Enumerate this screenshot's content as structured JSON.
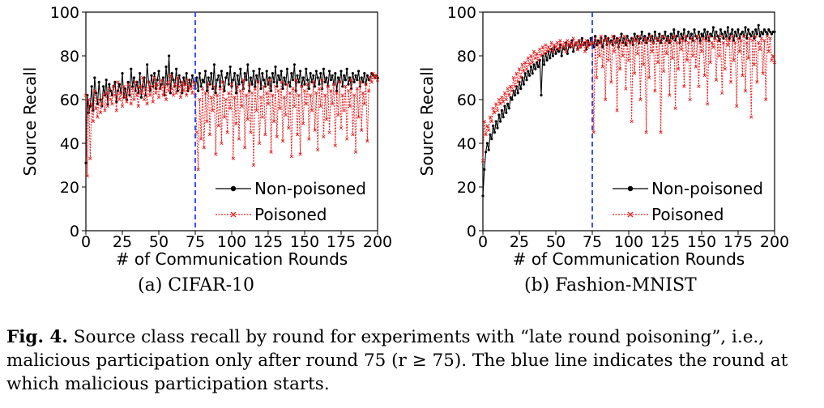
{
  "chart_data": [
    {
      "type": "line",
      "caption": "(a) CIFAR-10",
      "xlabel": "# of Communication Rounds",
      "ylabel": "Source Recall",
      "xlim": [
        0,
        200
      ],
      "ylim": [
        0,
        100
      ],
      "xticks": [
        0,
        25,
        50,
        75,
        100,
        125,
        150,
        175,
        200
      ],
      "yticks": [
        0,
        20,
        40,
        60,
        80,
        100
      ],
      "vline_x": 75,
      "vline_color": "#1f3fff",
      "legend_position": "bottom-right",
      "series": [
        {
          "name": "Non-poisoned",
          "color": "#000000",
          "marker": "circle",
          "values": [
            31,
            62,
            54,
            57,
            66,
            55,
            70,
            63,
            58,
            68,
            60,
            57,
            66,
            62,
            69,
            58,
            67,
            64,
            62,
            66,
            68,
            59,
            64,
            67,
            63,
            72,
            61,
            65,
            60,
            68,
            62,
            74,
            66,
            70,
            64,
            68,
            63,
            72,
            61,
            66,
            70,
            62,
            76,
            68,
            64,
            71,
            66,
            72,
            65,
            69,
            73,
            65,
            67,
            70,
            62,
            75,
            67,
            80,
            63,
            72,
            69,
            66,
            74,
            64,
            71,
            68,
            63,
            70,
            67,
            72,
            64,
            69,
            66,
            71,
            68,
            65,
            70,
            64,
            72,
            66,
            69,
            68,
            73,
            64,
            70,
            67,
            72,
            65,
            76,
            63,
            69,
            71,
            66,
            73,
            68,
            64,
            70,
            72,
            67,
            75,
            66,
            69,
            72,
            63,
            71,
            67,
            74,
            68,
            65,
            72,
            69,
            76,
            64,
            70,
            67,
            73,
            66,
            71,
            68,
            74,
            65,
            72,
            69,
            66,
            73,
            67,
            70,
            64,
            72,
            68,
            75,
            66,
            71,
            69,
            73,
            65,
            70,
            67,
            74,
            68,
            66,
            72,
            69,
            76,
            64,
            71,
            68,
            73,
            66,
            70,
            67,
            74,
            69,
            65,
            72,
            68,
            71,
            66,
            73,
            70,
            67,
            72,
            65,
            74,
            68,
            70,
            66,
            73,
            69,
            71,
            67,
            72,
            64,
            70,
            68,
            73,
            66,
            71,
            69,
            74,
            67,
            70,
            65,
            72,
            68,
            71,
            69,
            73,
            66,
            70,
            68,
            72,
            67,
            71,
            69,
            70,
            72,
            71,
            70,
            71,
            70
          ]
        },
        {
          "name": "Poisoned",
          "color": "#e82020",
          "marker": "x",
          "values": [
            62,
            25,
            60,
            33,
            58,
            50,
            64,
            56,
            52,
            60,
            54,
            58,
            62,
            55,
            63,
            57,
            65,
            60,
            58,
            66,
            62,
            55,
            68,
            60,
            63,
            57,
            66,
            61,
            59,
            67,
            63,
            58,
            65,
            60,
            68,
            62,
            57,
            66,
            63,
            70,
            60,
            65,
            58,
            68,
            62,
            66,
            59,
            70,
            63,
            67,
            61,
            65,
            69,
            62,
            66,
            60,
            68,
            64,
            71,
            65,
            62,
            67,
            63,
            70,
            66,
            61,
            68,
            64,
            67,
            62,
            69,
            65,
            66,
            63,
            68,
            62,
            45,
            28,
            60,
            42,
            65,
            38,
            63,
            50,
            67,
            44,
            61,
            55,
            66,
            35,
            62,
            48,
            65,
            40,
            68,
            52,
            60,
            45,
            63,
            56,
            67,
            33,
            61,
            49,
            66,
            42,
            64,
            57,
            69,
            38,
            62,
            51,
            67,
            45,
            63,
            30,
            65,
            55,
            68,
            40,
            61,
            52,
            66,
            44,
            63,
            58,
            69,
            36,
            62,
            50,
            66,
            43,
            64,
            56,
            68,
            41,
            61,
            53,
            67,
            47,
            63,
            34,
            65,
            57,
            69,
            44,
            62,
            35,
            66,
            49,
            64,
            58,
            67,
            42,
            62,
            55,
            68,
            46,
            63,
            37,
            65,
            57,
            69,
            43,
            62,
            51,
            66,
            45,
            64,
            58,
            67,
            39,
            63,
            53,
            68,
            47,
            62,
            55,
            66,
            42,
            64,
            57,
            69,
            44,
            62,
            36,
            65,
            52,
            68,
            46,
            63,
            58,
            67,
            41,
            64,
            70,
            68,
            72,
            70,
            71,
            69
          ]
        }
      ]
    },
    {
      "type": "line",
      "caption": "(b) Fashion-MNIST",
      "xlabel": "# of Communication Rounds",
      "ylabel": "Source Recall",
      "xlim": [
        0,
        200
      ],
      "ylim": [
        0,
        100
      ],
      "xticks": [
        0,
        25,
        50,
        75,
        100,
        125,
        150,
        175,
        200
      ],
      "yticks": [
        0,
        20,
        40,
        60,
        80,
        100
      ],
      "vline_x": 75,
      "vline_color": "#1f3fff",
      "legend_position": "bottom-right",
      "series": [
        {
          "name": "Non-poisoned",
          "color": "#000000",
          "marker": "circle",
          "values": [
            16,
            28,
            36,
            40,
            37,
            44,
            42,
            48,
            45,
            50,
            47,
            53,
            50,
            55,
            52,
            57,
            54,
            58,
            56,
            61,
            60,
            64,
            62,
            66,
            63,
            68,
            65,
            70,
            67,
            72,
            69,
            73,
            71,
            75,
            72,
            76,
            74,
            77,
            75,
            78,
            62,
            80,
            76,
            81,
            78,
            82,
            79,
            83,
            80,
            84,
            81,
            83,
            82,
            85,
            80,
            84,
            83,
            86,
            81,
            85,
            84,
            87,
            82,
            85,
            86,
            83,
            87,
            84,
            88,
            85,
            86,
            83,
            87,
            85,
            88,
            86,
            84,
            89,
            85,
            87,
            86,
            88,
            84,
            87,
            89,
            85,
            88,
            86,
            87,
            85,
            89,
            86,
            88,
            84,
            87,
            90,
            86,
            88,
            85,
            89,
            87,
            86,
            88,
            85,
            90,
            87,
            89,
            86,
            88,
            91,
            87,
            89,
            86,
            88,
            90,
            87,
            89,
            86,
            91,
            88,
            87,
            90,
            86,
            89,
            88,
            91,
            87,
            89,
            86,
            90,
            88,
            92,
            87,
            89,
            91,
            86,
            90,
            88,
            92,
            87,
            89,
            91,
            88,
            90,
            87,
            92,
            89,
            88,
            91,
            87,
            90,
            89,
            92,
            88,
            91,
            87,
            90,
            89,
            93,
            88,
            91,
            89,
            87,
            92,
            90,
            88,
            91,
            89,
            93,
            88,
            90,
            92,
            87,
            91,
            89,
            92,
            88,
            90,
            91,
            89,
            93,
            88,
            92,
            90,
            89,
            91,
            88,
            92,
            90,
            94,
            89,
            91,
            90,
            92,
            91,
            90,
            92,
            91,
            90,
            91,
            91
          ]
        },
        {
          "name": "Poisoned",
          "color": "#e82020",
          "marker": "x",
          "values": [
            32,
            50,
            44,
            48,
            46,
            52,
            50,
            56,
            54,
            58,
            55,
            60,
            58,
            61,
            59,
            63,
            60,
            65,
            62,
            66,
            64,
            70,
            66,
            72,
            68,
            74,
            70,
            76,
            73,
            77,
            74,
            79,
            76,
            80,
            77,
            82,
            79,
            81,
            78,
            83,
            80,
            84,
            81,
            85,
            82,
            84,
            83,
            86,
            82,
            85,
            84,
            86,
            83,
            87,
            85,
            84,
            86,
            82,
            87,
            85,
            86,
            84,
            88,
            85,
            86,
            83,
            87,
            84,
            85,
            86,
            82,
            87,
            84,
            86,
            85,
            86,
            45,
            88,
            70,
            86,
            80,
            89,
            75,
            87,
            60,
            88,
            78,
            86,
            68,
            89,
            82,
            87,
            55,
            88,
            74,
            86,
            80,
            89,
            65,
            87,
            78,
            86,
            50,
            88,
            72,
            87,
            81,
            89,
            60,
            86,
            76,
            88,
            45,
            87,
            70,
            89,
            82,
            86,
            64,
            88,
            77,
            87,
            45,
            89,
            73,
            86,
            81,
            88,
            62,
            87,
            79,
            89,
            56,
            86,
            74,
            88,
            83,
            87,
            66,
            89,
            78,
            86,
            60,
            88,
            80,
            87,
            75,
            89,
            66,
            86,
            82,
            88,
            71,
            87,
            58,
            89,
            77,
            86,
            84,
            88,
            69,
            87,
            80,
            89,
            63,
            86,
            74,
            88,
            85,
            87,
            68,
            89,
            78,
            86,
            57,
            88,
            82,
            87,
            71,
            89,
            64,
            86,
            79,
            88,
            52,
            87,
            76,
            89,
            68,
            86,
            83,
            88,
            72,
            87,
            60,
            89,
            82,
            88,
            78,
            80,
            77
          ]
        }
      ]
    }
  ],
  "subcaptions": {
    "a": "(a) CIFAR-10",
    "b": "(b) Fashion-MNIST"
  },
  "figure_caption": {
    "label": "Fig. 4.",
    "text": " Source class recall by round for experiments with “late round poisoning”, i.e., malicious participation only after round 75 (r ≥ 75). The blue line indicates the round at which malicious participation starts."
  }
}
